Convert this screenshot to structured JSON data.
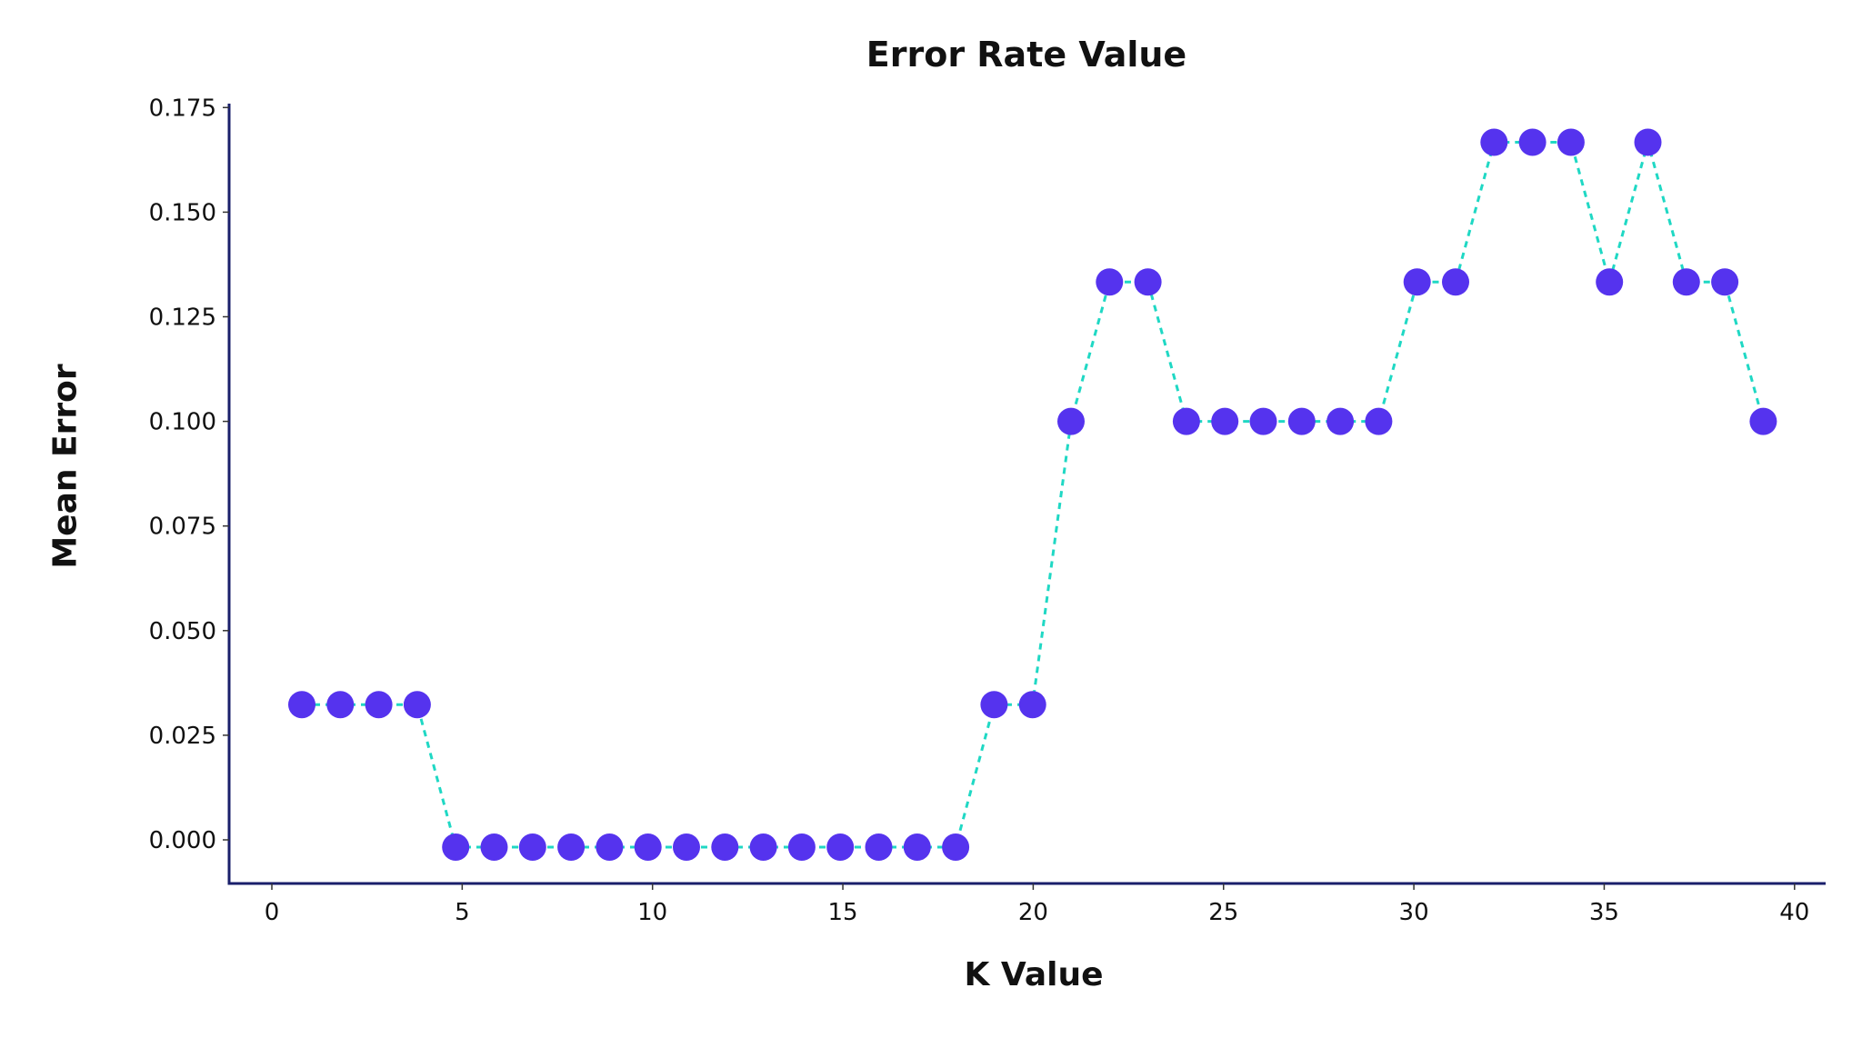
{
  "chart_data": {
    "type": "line",
    "title": "Error Rate Value",
    "xlabel": "K Value",
    "ylabel": "Mean Error",
    "x": [
      1,
      2,
      3,
      4,
      5,
      6,
      7,
      8,
      9,
      10,
      11,
      12,
      13,
      14,
      15,
      16,
      17,
      18,
      19,
      20,
      21,
      22,
      23,
      24,
      25,
      26,
      27,
      28,
      29,
      30,
      31,
      32,
      33,
      34,
      35,
      36,
      37,
      38,
      39
    ],
    "series": [
      {
        "name": "Mean Error",
        "values": [
          0.0323,
          0.0323,
          0.0323,
          0.0323,
          0.0,
          0.0,
          0.0,
          0.0,
          0.0,
          0.0,
          0.0,
          0.0,
          0.0,
          0.0,
          0.0,
          0.0,
          0.0,
          0.0,
          0.0323,
          0.0323,
          0.1,
          0.1333,
          0.1333,
          0.1,
          0.1,
          0.1,
          0.1,
          0.1,
          0.1,
          0.1333,
          0.1333,
          0.1667,
          0.1667,
          0.1667,
          0.1333,
          0.1667,
          0.1333,
          0.1333,
          0.1
        ],
        "line_style": "dashed",
        "line_color": "#1fd8c4",
        "marker": "circle",
        "marker_color": "#5533ee"
      }
    ],
    "xticks": [
      "0",
      "5",
      "10",
      "15",
      "20",
      "25",
      "30",
      "35",
      "40"
    ],
    "yticks": [
      "0.000",
      "0.025",
      "0.050",
      "0.075",
      "0.100",
      "0.125",
      "0.150",
      "0.175"
    ],
    "xlim": [
      -1.1,
      40.8
    ],
    "ylim": [
      -0.0105,
      0.175
    ],
    "grid": false,
    "legend": false,
    "axis_color": "#1a1f6b"
  }
}
